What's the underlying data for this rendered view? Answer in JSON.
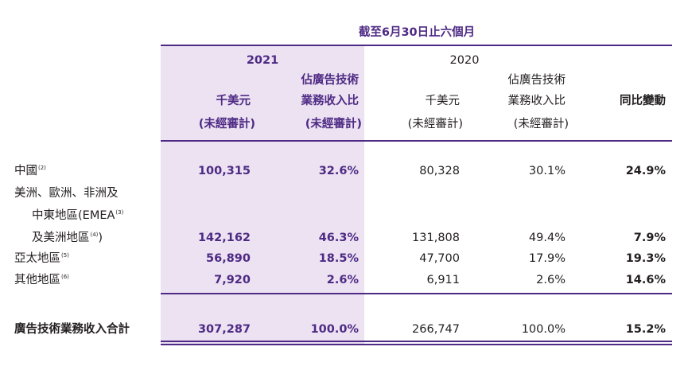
{
  "header": {
    "period": "截至6月30日止六個月",
    "year_2021": "2021",
    "year_2020": "2020",
    "col_2021_amount": [
      "千美元",
      "(未經審計)"
    ],
    "col_2021_pct": [
      "佔廣告技術",
      "業務收入比",
      "(未經審計)"
    ],
    "col_2020_amount": [
      "千美元",
      "(未經審計)"
    ],
    "col_2020_pct": [
      "佔廣告技術",
      "業務收入比",
      "(未經審計)"
    ],
    "col_yoy": "同比變動"
  },
  "rows": [
    {
      "label": "中國",
      "note": "(2)",
      "v2021": "100,315",
      "p2021": "32.6%",
      "v2020": "80,328",
      "p2020": "30.1%",
      "yoy": "24.9%"
    },
    {
      "label_lines": [
        "美洲、歐洲、非洲及",
        "中東地區(EMEA",
        "及美洲地區"
      ],
      "note_line2": "(3)",
      "note_line3": "(4)",
      "paren_close": ")",
      "v2021": "142,162",
      "p2021": "46.3%",
      "v2020": "131,808",
      "p2020": "49.4%",
      "yoy": "7.9%"
    },
    {
      "label": "亞太地區",
      "note": "(5)",
      "v2021": "56,890",
      "p2021": "18.5%",
      "v2020": "47,700",
      "p2020": "17.9%",
      "yoy": "19.3%"
    },
    {
      "label": "其他地區",
      "note": "(6)",
      "v2021": "7,920",
      "p2021": "2.6%",
      "v2020": "6,911",
      "p2020": "2.6%",
      "yoy": "14.6%"
    }
  ],
  "total": {
    "label": "廣告技術業務收入合計",
    "v2021": "307,287",
    "p2021": "100.0%",
    "v2020": "266,747",
    "p2020": "100.0%",
    "yoy": "15.2%"
  },
  "colors": {
    "accent": "#4e2a84",
    "shade": "#ece2f2",
    "text": "#231f20"
  }
}
